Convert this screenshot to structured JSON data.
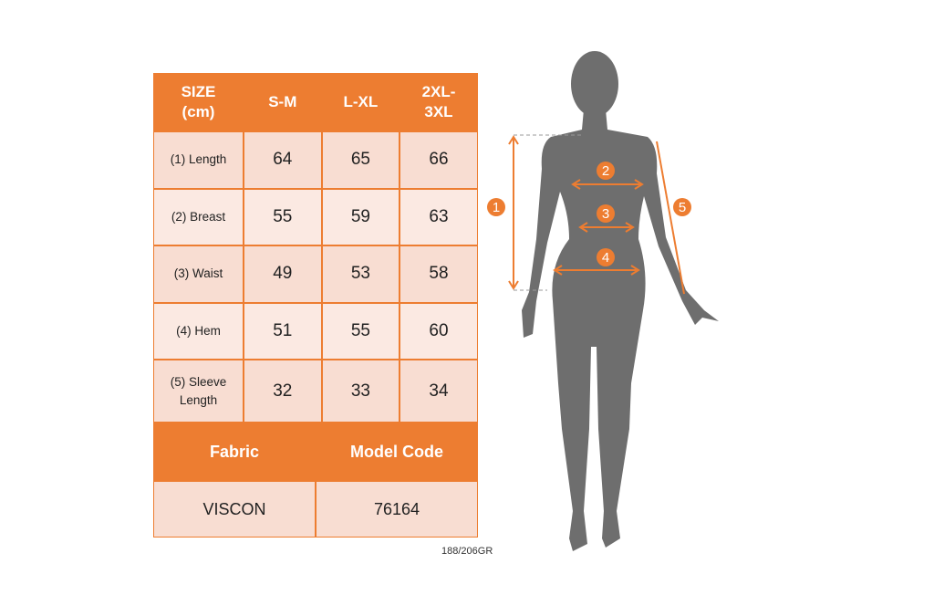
{
  "table": {
    "headers": [
      "SIZE\n(cm)",
      "S-M",
      "L-XL",
      "2XL-\n3XL"
    ],
    "rows": [
      {
        "label": "(1) Length",
        "values": [
          "64",
          "65",
          "66"
        ]
      },
      {
        "label": "(2) Breast",
        "values": [
          "55",
          "59",
          "63"
        ]
      },
      {
        "label": "(3) Waist",
        "values": [
          "49",
          "53",
          "58"
        ]
      },
      {
        "label": "(4) Hem",
        "values": [
          "51",
          "55",
          "60"
        ]
      },
      {
        "label": "(5) Sleeve\nLength",
        "values": [
          "32",
          "33",
          "34"
        ]
      }
    ],
    "fabric_label": "Fabric",
    "model_code_label": "Model Code",
    "fabric": "VISCON",
    "model_code": "76164"
  },
  "code_note": "188/206GR",
  "markers": [
    "1",
    "2",
    "3",
    "4",
    "5"
  ],
  "colors": {
    "accent": "#ED7D31",
    "cell": "#F8DDD2",
    "silhouette": "#6E6E6E"
  }
}
